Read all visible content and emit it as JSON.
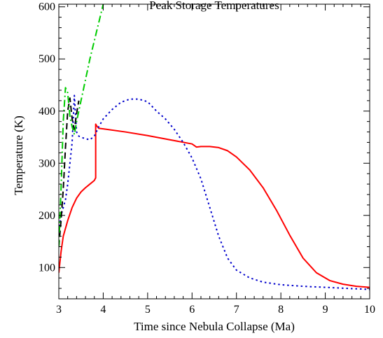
{
  "chart_data": {
    "type": "line",
    "title": "Peak Storage Temperatures",
    "xlabel": "Time since Nebula Collapse (Ma)",
    "ylabel": "Temperature (K)",
    "xlim": [
      3,
      10
    ],
    "ylim": [
      40,
      605
    ],
    "xticks": [
      3,
      4,
      5,
      6,
      7,
      8,
      9,
      10
    ],
    "yticks": [
      100,
      200,
      300,
      400,
      500,
      600
    ],
    "grid": false,
    "legend": "none",
    "series": [
      {
        "color": "#ff0000",
        "style": "solid",
        "x": [
          3.0,
          3.05,
          3.1,
          3.2,
          3.3,
          3.4,
          3.5,
          3.6,
          3.7,
          3.8,
          3.83,
          3.83,
          3.85,
          3.9,
          4.0,
          4.5,
          5.0,
          5.5,
          6.0,
          6.1,
          6.2,
          6.4,
          6.6,
          6.8,
          7.0,
          7.3,
          7.6,
          7.9,
          8.2,
          8.5,
          8.8,
          9.1,
          9.4,
          9.7,
          10.0
        ],
        "y": [
          90,
          130,
          160,
          190,
          215,
          233,
          245,
          253,
          260,
          267,
          272,
          375,
          372,
          367,
          366,
          360,
          353,
          345,
          337,
          331,
          332,
          332,
          330,
          324,
          312,
          287,
          253,
          210,
          162,
          118,
          90,
          75,
          68,
          64,
          62
        ]
      },
      {
        "color": "#0000cc",
        "style": "dotted",
        "x": [
          3.0,
          3.05,
          3.1,
          3.15,
          3.2,
          3.25,
          3.3,
          3.35,
          3.4,
          3.45,
          3.5,
          3.6,
          3.7,
          3.8,
          3.9,
          4.0,
          4.2,
          4.4,
          4.6,
          4.8,
          5.0,
          5.2,
          5.4,
          5.6,
          5.8,
          6.0,
          6.2,
          6.4,
          6.6,
          6.8,
          7.0,
          7.3,
          7.6,
          8.0,
          8.5,
          9.0,
          9.5,
          10.0
        ],
        "y": [
          170,
          200,
          215,
          230,
          260,
          300,
          340,
          430,
          360,
          352,
          350,
          347,
          345,
          352,
          370,
          385,
          403,
          417,
          423,
          423,
          418,
          400,
          385,
          365,
          340,
          310,
          270,
          215,
          160,
          118,
          95,
          80,
          72,
          67,
          64,
          62,
          60,
          58
        ]
      },
      {
        "color": "#000000",
        "style": "dashed",
        "x": [
          3.0,
          3.05,
          3.1,
          3.15,
          3.2,
          3.25,
          3.3,
          3.35,
          3.4,
          3.45
        ],
        "y": [
          140,
          190,
          250,
          330,
          400,
          425,
          385,
          365,
          395,
          420
        ]
      },
      {
        "color": "#00cc00",
        "style": "dashdot",
        "x": [
          3.0,
          3.05,
          3.1,
          3.15,
          3.2,
          3.25,
          3.3,
          3.35,
          3.4,
          3.5,
          3.6,
          3.7,
          3.8,
          3.9,
          4.0
        ],
        "y": [
          140,
          250,
          380,
          445,
          435,
          390,
          370,
          355,
          380,
          420,
          460,
          500,
          535,
          570,
          605
        ]
      }
    ]
  }
}
